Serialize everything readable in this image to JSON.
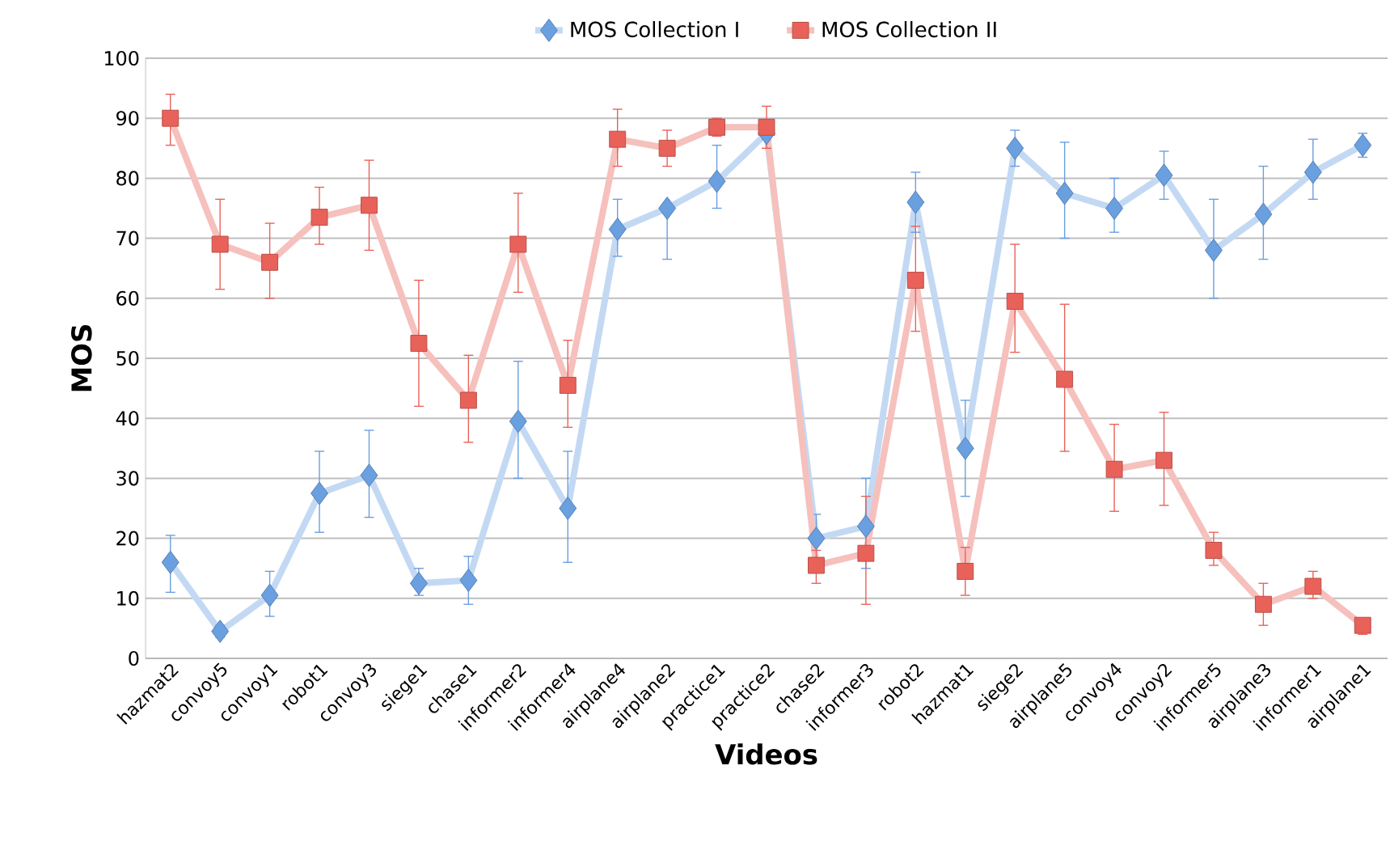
{
  "chart_data": {
    "type": "line",
    "xlabel": "Videos",
    "ylabel": "MOS",
    "categories": [
      "hazmat2",
      "convoy5",
      "convoy1",
      "robot1",
      "convoy3",
      "siege1",
      "chase1",
      "informer2",
      "informer4",
      "airplane4",
      "airplane2",
      "practice1",
      "practice2",
      "chase2",
      "informer3",
      "robot2",
      "hazmat1",
      "siege2",
      "airplane5",
      "convoy4",
      "convoy2",
      "informer5",
      "airplane3",
      "informer1",
      "airplane1"
    ],
    "series": [
      {
        "name": "MOS Collection I",
        "color": "#6a9fe0",
        "marker": "diamond",
        "values": [
          16,
          4.5,
          10.5,
          27.5,
          30.5,
          12.5,
          13,
          39.5,
          25,
          71.5,
          75,
          79.5,
          87.5,
          20,
          22,
          76,
          35,
          85,
          77.5,
          75,
          80.5,
          68,
          74,
          81,
          85.5
        ],
        "errors": [
          [
            11,
            20.5
          ],
          [
            3.5,
            5.5
          ],
          [
            7,
            14.5
          ],
          [
            21,
            34.5
          ],
          [
            23.5,
            38
          ],
          [
            10.5,
            15
          ],
          [
            9,
            17
          ],
          [
            30,
            49.5
          ],
          [
            16,
            34.5
          ],
          [
            67,
            76.5
          ],
          [
            66.5,
            75
          ],
          [
            75,
            85.5
          ],
          [
            86.5,
            87.5
          ],
          [
            16,
            24
          ],
          [
            15,
            30
          ],
          [
            71,
            81
          ],
          [
            27,
            43
          ],
          [
            82,
            88
          ],
          [
            70,
            86
          ],
          [
            71,
            80
          ],
          [
            76.5,
            84.5
          ],
          [
            60,
            76.5
          ],
          [
            66.5,
            82
          ],
          [
            76.5,
            86.5
          ],
          [
            83.5,
            87.5
          ]
        ]
      },
      {
        "name": "MOS Collection II",
        "color": "#e8625a",
        "marker": "square",
        "values": [
          90,
          69,
          66,
          73.5,
          75.5,
          52.5,
          43,
          69,
          45.5,
          86.5,
          85,
          88.5,
          88.5,
          15.5,
          17.5,
          63,
          14.5,
          59.5,
          46.5,
          31.5,
          33,
          18,
          9,
          12,
          5.5
        ],
        "errors": [
          [
            85.5,
            94
          ],
          [
            61.5,
            76.5
          ],
          [
            60,
            72.5
          ],
          [
            69,
            78.5
          ],
          [
            68,
            83
          ],
          [
            42,
            63
          ],
          [
            36,
            50.5
          ],
          [
            61,
            77.5
          ],
          [
            38.5,
            53
          ],
          [
            82,
            91.5
          ],
          [
            82,
            88
          ],
          [
            87,
            90
          ],
          [
            85,
            92
          ],
          [
            12.5,
            18
          ],
          [
            9,
            27
          ],
          [
            54.5,
            72
          ],
          [
            10.5,
            18.5
          ],
          [
            51,
            69
          ],
          [
            34.5,
            59
          ],
          [
            24.5,
            39
          ],
          [
            25.5,
            41
          ],
          [
            15.5,
            21
          ],
          [
            5.5,
            12.5
          ],
          [
            10,
            14.5
          ],
          [
            4,
            6.5
          ]
        ]
      }
    ],
    "ylim": [
      0,
      100
    ],
    "yticks": [
      0,
      10,
      20,
      30,
      40,
      50,
      60,
      70,
      80,
      90,
      100
    ],
    "grid": "y",
    "legend": "top",
    "line_style": "solid"
  }
}
